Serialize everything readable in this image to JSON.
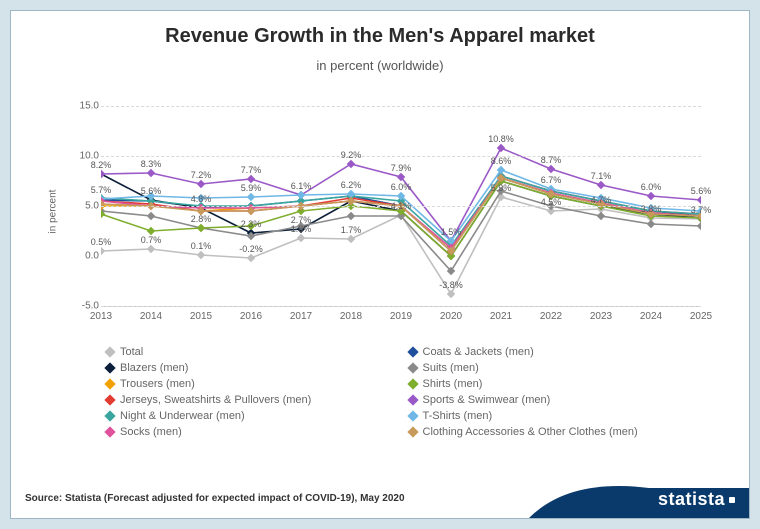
{
  "title": "Revenue Growth in the Men's Apparel market",
  "subtitle": "in percent (worldwide)",
  "y_axis_label": "in percent",
  "source": "Source: Statista (Forecast adjusted for expected impact of COVID-19), May 2020",
  "brand": "statista",
  "chart": {
    "type": "line",
    "xlim": [
      2013,
      2025
    ],
    "ylim": [
      -5,
      15
    ],
    "ytick_step": 5,
    "yticks": [
      -5.0,
      0.0,
      5.0,
      10.0,
      15.0
    ],
    "categories": [
      2013,
      2014,
      2015,
      2016,
      2017,
      2018,
      2019,
      2020,
      2021,
      2022,
      2023,
      2024,
      2025
    ],
    "background_color": "#ffffff",
    "grid_color": "#d9d9d9",
    "axis_color": "#c7c7c7",
    "tick_fontsize": 10,
    "label_fontsize": 10,
    "marker_style": "diamond",
    "marker_size": 6,
    "line_width": 1.6,
    "title_fontsize": 20,
    "subtitle_fontsize": 13,
    "series": [
      {
        "name": "Total",
        "color": "#bfbfbf",
        "values": [
          0.5,
          0.7,
          0.1,
          -0.2,
          1.8,
          1.7,
          4.1,
          -3.8,
          5.9,
          4.5,
          4.7,
          3.8,
          3.7
        ]
      },
      {
        "name": "Coats & Jackets (men)",
        "color": "#1f4e9c",
        "values": [
          5.6,
          5.5,
          4.9,
          5.0,
          5.5,
          6.0,
          5.0,
          0.5,
          8.0,
          6.5,
          5.5,
          4.5,
          4.0
        ]
      },
      {
        "name": "Blazers (men)",
        "color": "#0b1f3a",
        "values": [
          8.2,
          5.6,
          4.8,
          2.3,
          2.7,
          5.5,
          4.5,
          0.0,
          7.5,
          6.0,
          5.0,
          4.2,
          3.8
        ]
      },
      {
        "name": "Suits (men)",
        "color": "#8a8a8a",
        "values": [
          4.5,
          4.0,
          2.8,
          2.0,
          3.0,
          4.0,
          4.0,
          -1.5,
          6.5,
          5.0,
          4.0,
          3.2,
          3.0
        ]
      },
      {
        "name": "Trousers (men)",
        "color": "#f2a100",
        "values": [
          5.0,
          5.0,
          4.5,
          4.8,
          5.0,
          5.5,
          5.0,
          0.5,
          7.8,
          6.2,
          5.3,
          4.3,
          4.0
        ]
      },
      {
        "name": "Shirts (men)",
        "color": "#7fae2f",
        "values": [
          4.2,
          2.5,
          2.8,
          3.0,
          4.5,
          5.0,
          4.5,
          0.0,
          7.5,
          6.0,
          5.0,
          4.0,
          3.8
        ]
      },
      {
        "name": "Jerseys, Sweatshirts & Pullovers (men)",
        "color": "#e03c31",
        "values": [
          5.5,
          5.2,
          4.5,
          4.5,
          5.0,
          5.8,
          5.0,
          0.5,
          8.0,
          6.5,
          5.5,
          4.5,
          4.2
        ]
      },
      {
        "name": "Sports & Swimwear (men)",
        "color": "#9b59c7",
        "values": [
          8.2,
          8.3,
          7.2,
          7.7,
          6.1,
          9.2,
          7.9,
          1.5,
          10.8,
          8.7,
          7.1,
          6.0,
          5.6
        ]
      },
      {
        "name": "Night & Underwear (men)",
        "color": "#3aa6a0",
        "values": [
          5.8,
          5.5,
          5.0,
          5.0,
          5.5,
          6.0,
          5.5,
          1.0,
          8.0,
          6.5,
          5.5,
          4.5,
          4.2
        ]
      },
      {
        "name": "T-Shirts (men)",
        "color": "#6fb8e6",
        "values": [
          5.7,
          6.0,
          5.8,
          5.9,
          6.1,
          6.2,
          6.0,
          1.5,
          8.6,
          6.7,
          5.8,
          4.8,
          4.5
        ]
      },
      {
        "name": "Socks (men)",
        "color": "#e0529c",
        "values": [
          5.5,
          5.0,
          4.8,
          4.8,
          5.0,
          5.5,
          5.0,
          0.8,
          7.8,
          6.3,
          5.3,
          4.3,
          4.0
        ]
      },
      {
        "name": "Clothing Accessories & Other Clothes (men)",
        "color": "#c79a5b",
        "values": [
          5.2,
          5.0,
          4.5,
          4.5,
          5.0,
          5.5,
          5.0,
          0.5,
          7.8,
          6.2,
          5.2,
          4.2,
          4.0
        ]
      }
    ],
    "point_labels": [
      {
        "series": 7,
        "i": 0,
        "text": "8.2%"
      },
      {
        "series": 9,
        "i": 0,
        "text": "5.7%"
      },
      {
        "series": 0,
        "i": 0,
        "text": "0.5%"
      },
      {
        "series": 7,
        "i": 1,
        "text": "8.3%"
      },
      {
        "series": 2,
        "i": 1,
        "text": "5.6%"
      },
      {
        "series": 0,
        "i": 1,
        "text": "0.7%"
      },
      {
        "series": 7,
        "i": 2,
        "text": "7.2%"
      },
      {
        "series": 2,
        "i": 2,
        "text": "4.8%"
      },
      {
        "series": 3,
        "i": 2,
        "text": "2.8%"
      },
      {
        "series": 0,
        "i": 2,
        "text": "0.1%"
      },
      {
        "series": 7,
        "i": 3,
        "text": "7.7%"
      },
      {
        "series": 9,
        "i": 3,
        "text": "5.9%"
      },
      {
        "series": 2,
        "i": 3,
        "text": "2.3%"
      },
      {
        "series": 0,
        "i": 3,
        "text": "-0.2%"
      },
      {
        "series": 7,
        "i": 4,
        "text": "6.1%"
      },
      {
        "series": 2,
        "i": 4,
        "text": "2.7%"
      },
      {
        "series": 0,
        "i": 4,
        "text": "1.8%"
      },
      {
        "series": 7,
        "i": 5,
        "text": "9.2%"
      },
      {
        "series": 9,
        "i": 5,
        "text": "6.2%"
      },
      {
        "series": 0,
        "i": 5,
        "text": "1.7%"
      },
      {
        "series": 7,
        "i": 6,
        "text": "7.9%"
      },
      {
        "series": 9,
        "i": 6,
        "text": "6.0%"
      },
      {
        "series": 0,
        "i": 6,
        "text": "4.1%"
      },
      {
        "series": 7,
        "i": 7,
        "text": "1.5%"
      },
      {
        "series": 0,
        "i": 7,
        "text": "-3.8%"
      },
      {
        "series": 7,
        "i": 8,
        "text": "10.8%"
      },
      {
        "series": 9,
        "i": 8,
        "text": "8.6%"
      },
      {
        "series": 0,
        "i": 8,
        "text": "5.9%"
      },
      {
        "series": 7,
        "i": 9,
        "text": "8.7%"
      },
      {
        "series": 9,
        "i": 9,
        "text": "6.7%"
      },
      {
        "series": 0,
        "i": 9,
        "text": "4.5%"
      },
      {
        "series": 7,
        "i": 10,
        "text": "7.1%"
      },
      {
        "series": 0,
        "i": 10,
        "text": "4.7%"
      },
      {
        "series": 7,
        "i": 11,
        "text": "6.0%"
      },
      {
        "series": 0,
        "i": 11,
        "text": "3.8%"
      },
      {
        "series": 7,
        "i": 12,
        "text": "5.6%"
      },
      {
        "series": 0,
        "i": 12,
        "text": "3.7%"
      }
    ]
  },
  "footer_color": "#0a3a6b"
}
